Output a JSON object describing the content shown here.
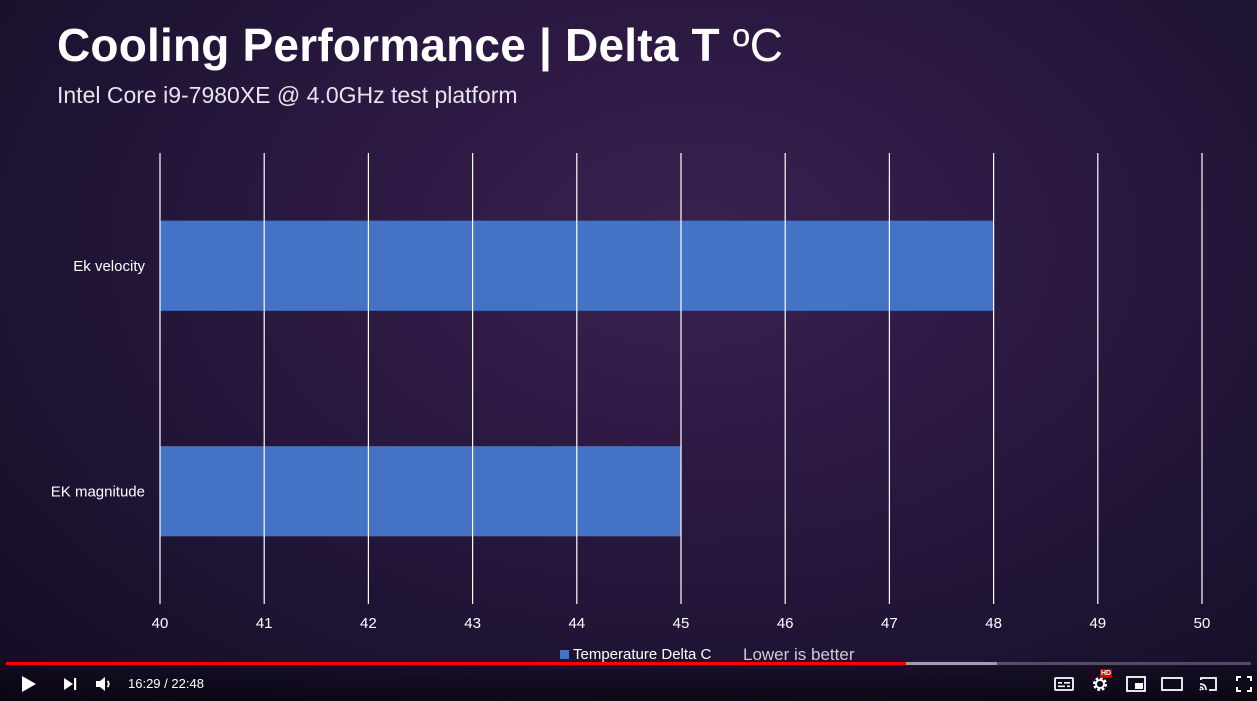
{
  "slide": {
    "title": "Cooling Performance  |  Delta T",
    "title_unit": "ºC",
    "subtitle": "Intel Core i9-7980XE @ 4.0GHz test platform",
    "legend_label": "Temperature Delta C",
    "note": "Lower is better"
  },
  "chart_data": {
    "type": "bar",
    "orientation": "horizontal",
    "categories": [
      "Ek velocity",
      "EK magnitude"
    ],
    "series": [
      {
        "name": "Temperature Delta C",
        "values": [
          48,
          45
        ]
      }
    ],
    "xlim": [
      40,
      50
    ],
    "xticks": [
      "40",
      "41",
      "42",
      "43",
      "44",
      "45",
      "46",
      "47",
      "48",
      "49",
      "50"
    ],
    "grid": true,
    "legend_position": "bottom",
    "colors": {
      "bar": "#4472c4",
      "grid": "#ffffff"
    }
  },
  "player": {
    "current_time": "16:29",
    "separator": " / ",
    "duration": "22:48",
    "progress_fraction": 0.723,
    "buffered_fraction": 0.796,
    "hd_label": "HD",
    "icons": {
      "play": "play-icon",
      "next": "next-icon",
      "volume": "volume-icon",
      "subtitles": "subtitles-icon",
      "settings": "settings-icon",
      "miniplayer": "miniplayer-icon",
      "theater": "theater-icon",
      "cast": "cast-icon",
      "fullscreen": "fullscreen-icon"
    },
    "accent_color": "#ff0000"
  }
}
